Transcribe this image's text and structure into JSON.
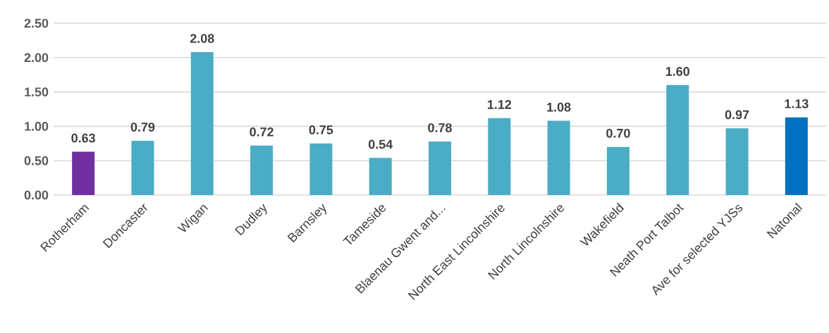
{
  "chart_data": {
    "type": "bar",
    "categories": [
      "Rotherham",
      "Doncaster",
      "Wigan",
      "Dudley",
      "Barnsley",
      "Tameside",
      "Blaenau Gwent and...",
      "North East Lincolnshire",
      "North Lincolnshire",
      "Wakefield",
      "Neath Port Talbot",
      "Ave for selected YJSs",
      "Natonal"
    ],
    "values": [
      0.63,
      0.79,
      2.08,
      0.72,
      0.75,
      0.54,
      0.78,
      1.12,
      1.08,
      0.7,
      1.6,
      0.97,
      1.13
    ],
    "value_labels": [
      "0.63",
      "0.79",
      "2.08",
      "0.72",
      "0.75",
      "0.54",
      "0.78",
      "1.12",
      "1.08",
      "0.70",
      "1.60",
      "0.97",
      "1.13"
    ],
    "colors": [
      "#7030a0",
      "#4bacc6",
      "#4bacc6",
      "#4bacc6",
      "#4bacc6",
      "#4bacc6",
      "#4bacc6",
      "#4bacc6",
      "#4bacc6",
      "#4bacc6",
      "#4bacc6",
      "#4bacc6",
      "#0070c0"
    ],
    "ylim": [
      0,
      2.5
    ],
    "yticks": [
      {
        "value": 0,
        "label": "0.00"
      },
      {
        "value": 0.5,
        "label": "0.50"
      },
      {
        "value": 1,
        "label": "1.00"
      },
      {
        "value": 1.5,
        "label": "1.50"
      },
      {
        "value": 2,
        "label": "2.00"
      },
      {
        "value": 2.5,
        "label": "2.50"
      }
    ],
    "grid": "y"
  }
}
